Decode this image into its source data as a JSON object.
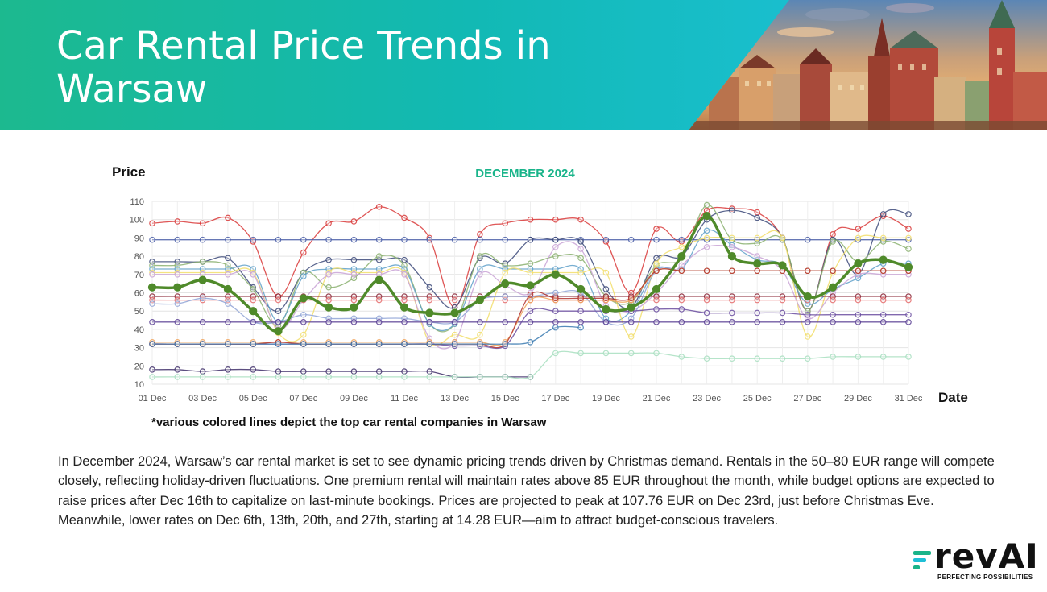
{
  "header": {
    "title": "Car Rental Price Trends in Warsaw"
  },
  "chart_data": {
    "type": "line",
    "title": "DECEMBER 2024",
    "xlabel": "Date",
    "ylabel": "Price",
    "ylim": [
      10,
      110
    ],
    "yticks": [
      10,
      20,
      30,
      40,
      50,
      60,
      70,
      80,
      90,
      100,
      110
    ],
    "grid": true,
    "x": [
      "01 Dec",
      "02 Dec",
      "03 Dec",
      "04 Dec",
      "05 Dec",
      "06 Dec",
      "07 Dec",
      "08 Dec",
      "09 Dec",
      "10 Dec",
      "11 Dec",
      "12 Dec",
      "13 Dec",
      "14 Dec",
      "15 Dec",
      "16 Dec",
      "17 Dec",
      "18 Dec",
      "19 Dec",
      "20 Dec",
      "21 Dec",
      "22 Dec",
      "23 Dec",
      "24 Dec",
      "25 Dec",
      "26 Dec",
      "27 Dec",
      "28 Dec",
      "29 Dec",
      "30 Dec",
      "31 Dec"
    ],
    "xticklabels": [
      "01 Dec",
      "03 Dec",
      "05 Dec",
      "07 Dec",
      "09 Dec",
      "11 Dec",
      "13 Dec",
      "15 Dec",
      "17 Dec",
      "19 Dec",
      "21 Dec",
      "23 Dec",
      "25 Dec",
      "27 Dec",
      "29 Dec",
      "31 Dec"
    ],
    "series": [
      {
        "color": "#d93a3a",
        "values": [
          98,
          99,
          98,
          101,
          88,
          58,
          82,
          98,
          99,
          107,
          101,
          90,
          52,
          92,
          98,
          100,
          100,
          100,
          88,
          60,
          95,
          88,
          105,
          106,
          104,
          90,
          50,
          92,
          95,
          102,
          95
        ]
      },
      {
        "color": "#4b5fa8",
        "values": [
          89,
          89,
          89,
          89,
          89,
          89,
          89,
          89,
          89,
          89,
          89,
          89,
          89,
          89,
          89,
          89,
          89,
          89,
          89,
          89,
          89,
          89,
          89,
          89,
          89,
          89,
          89,
          89,
          89,
          89,
          89
        ]
      },
      {
        "color": "#3d4a7a",
        "values": [
          77,
          77,
          77,
          79,
          63,
          50,
          71,
          78,
          78,
          78,
          78,
          63,
          52,
          79,
          76,
          89,
          89,
          88,
          62,
          52,
          79,
          80,
          100,
          105,
          101,
          90,
          50,
          89,
          70,
          103,
          103
        ]
      },
      {
        "color": "#8ab06f",
        "values": [
          75,
          75,
          77,
          75,
          62,
          42,
          71,
          63,
          68,
          80,
          75,
          43,
          43,
          80,
          75,
          76,
          80,
          79,
          58,
          55,
          75,
          79,
          108,
          89,
          87,
          89,
          50,
          88,
          77,
          88,
          84
        ]
      },
      {
        "color": "#5fa0c9",
        "values": [
          73,
          73,
          73,
          73,
          73,
          44,
          69,
          73,
          73,
          73,
          73,
          43,
          43,
          73,
          73,
          73,
          73,
          73,
          46,
          50,
          73,
          73,
          94,
          86,
          78,
          75,
          54,
          62,
          68,
          76,
          76
        ]
      },
      {
        "color": "#f2de6a",
        "values": [
          71,
          71,
          71,
          71,
          71,
          38,
          37,
          71,
          71,
          71,
          71,
          33,
          37,
          37,
          71,
          71,
          71,
          71,
          71,
          36,
          76,
          85,
          90,
          90,
          90,
          90,
          36,
          71,
          90,
          90,
          90
        ]
      },
      {
        "color": "#c9a3d6",
        "values": [
          70,
          70,
          70,
          70,
          70,
          40,
          56,
          70,
          70,
          70,
          70,
          35,
          33,
          70,
          64,
          60,
          85,
          84,
          53,
          50,
          60,
          75,
          85,
          85,
          80,
          72,
          46,
          60,
          70,
          70,
          70
        ]
      },
      {
        "color": "#4f8a2a",
        "bold": true,
        "values": [
          63,
          63,
          67,
          62,
          50,
          39,
          57,
          52,
          52,
          67,
          52,
          49,
          49,
          56,
          65,
          64,
          70,
          62,
          51,
          52,
          62,
          80,
          102,
          80,
          76,
          75,
          58,
          63,
          76,
          78,
          74
        ]
      },
      {
        "color": "#8c2a3a",
        "values": [
          58,
          58,
          58,
          58,
          58,
          58,
          58,
          58,
          58,
          58,
          58,
          58,
          58,
          58,
          58,
          58,
          58,
          58,
          58,
          58,
          58,
          58,
          58,
          58,
          58,
          58,
          58,
          58,
          58,
          58,
          58
        ]
      },
      {
        "color": "#e56b6b",
        "values": [
          56,
          56,
          56,
          56,
          56,
          56,
          56,
          56,
          56,
          56,
          56,
          56,
          56,
          56,
          56,
          56,
          56,
          56,
          56,
          56,
          56,
          56,
          56,
          56,
          56,
          56,
          56,
          56,
          56,
          56,
          56
        ]
      },
      {
        "color": "#8fa3d6",
        "values": [
          54,
          54,
          57,
          54,
          44,
          44,
          48,
          46,
          46,
          46,
          46,
          44,
          44,
          56,
          58,
          58,
          60,
          60,
          44,
          46,
          72,
          72,
          72,
          72,
          72,
          72,
          72,
          72,
          72,
          72,
          72
        ]
      },
      {
        "color": "#5a3f94",
        "values": [
          44,
          44,
          44,
          44,
          44,
          44,
          44,
          44,
          44,
          44,
          44,
          44,
          44,
          44,
          44,
          44,
          44,
          44,
          44,
          44,
          44,
          44,
          44,
          44,
          44,
          44,
          44,
          44,
          44,
          44,
          44
        ]
      },
      {
        "color": "#6b4ea0",
        "values": [
          32,
          32,
          32,
          32,
          32,
          32,
          32,
          32,
          32,
          32,
          32,
          32,
          31,
          31,
          31,
          50,
          50,
          50,
          50,
          50,
          51,
          51,
          49,
          49,
          49,
          49,
          48,
          48,
          48,
          48,
          48
        ]
      },
      {
        "color": "#f0a35a",
        "values": [
          33,
          33,
          33,
          33,
          33,
          33,
          33,
          33,
          33,
          33,
          33,
          33,
          33,
          33,
          33,
          56,
          56,
          56,
          56,
          56,
          72,
          72,
          72,
          72,
          72,
          72,
          72,
          72,
          72,
          72,
          72
        ]
      },
      {
        "color": "#b3342e",
        "values": [
          32,
          32,
          32,
          32,
          32,
          33,
          32,
          32,
          32,
          32,
          32,
          32,
          32,
          32,
          32,
          59,
          57,
          57,
          57,
          57,
          72,
          72,
          72,
          72,
          72,
          72,
          72,
          72,
          72,
          72,
          72
        ]
      },
      {
        "color": "#3a7ab0",
        "values": [
          32,
          32,
          32,
          32,
          32,
          32,
          32,
          32,
          32,
          32,
          32,
          32,
          32,
          32,
          32,
          33,
          41,
          41,
          null,
          null,
          null,
          null,
          null,
          null,
          null,
          null,
          null,
          null,
          null,
          null,
          null
        ]
      },
      {
        "color": "#3f2f6a",
        "values": [
          18,
          18,
          17,
          18,
          18,
          17,
          17,
          17,
          17,
          17,
          17,
          17,
          14,
          14,
          14,
          14,
          null,
          null,
          null,
          null,
          null,
          null,
          null,
          null,
          null,
          null,
          null,
          null,
          null,
          null,
          null
        ]
      },
      {
        "color": "#a8dfc0",
        "values": [
          14,
          14,
          14,
          14,
          14,
          14,
          14,
          14,
          14,
          14,
          14,
          14,
          14,
          14,
          14,
          14,
          27,
          27,
          27,
          27,
          27,
          25,
          24,
          24,
          24,
          24,
          24,
          25,
          25,
          25,
          25
        ]
      }
    ]
  },
  "footnote": "*various colored lines depict the top car rental companies in Warsaw",
  "description": "In December 2024, Warsaw’s car rental market is set to see dynamic pricing trends driven by Christmas demand. Rentals in the 50–80 EUR range will compete closely, reflecting holiday-driven fluctuations. One premium rental will maintain rates above 85 EUR throughout the month, while budget options are expected to raise prices after Dec 16th to capitalize on last-minute bookings. Prices are projected to peak at 107.76 EUR on Dec 23rd, just before Christmas Eve. Meanwhile, lower rates on Dec 6th, 13th, 20th, and 27th, starting at 14.28 EUR—aim to attract budget-conscious travelers.",
  "logo": {
    "name": "revAI",
    "tagline": "PERFECTING POSSIBILITIES"
  },
  "colors": {
    "banner_start": "#1cb98f",
    "banner_end": "#1fc3e3",
    "chart_title": "#19b48a"
  }
}
